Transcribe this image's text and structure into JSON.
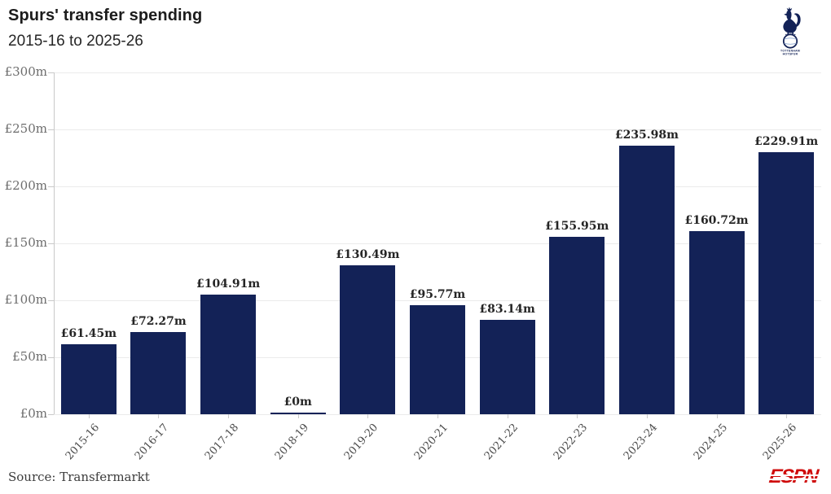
{
  "header": {
    "title": "Spurs' transfer spending",
    "subtitle": "2015-16 to 2025-26",
    "crest_text_top": "TOTTENHAM",
    "crest_text_bottom": "HOTSPUR"
  },
  "chart_data": {
    "type": "bar",
    "title": "Spurs' transfer spending",
    "subtitle": "2015-16 to 2025-26",
    "categories": [
      "2015-16",
      "2016-17",
      "2017-18",
      "2018-19",
      "2019-20",
      "2020-21",
      "2021-22",
      "2022-23",
      "2023-24",
      "2024-25",
      "2025-26"
    ],
    "values": [
      61.45,
      72.27,
      104.91,
      0,
      130.49,
      95.77,
      83.14,
      155.95,
      235.98,
      160.72,
      229.91
    ],
    "value_labels": [
      "£61.45m",
      "£72.27m",
      "£104.91m",
      "£0m",
      "£130.49m",
      "£95.77m",
      "£83.14m",
      "£155.95m",
      "£235.98m",
      "£160.72m",
      "£229.91m"
    ],
    "xlabel": "",
    "ylabel": "",
    "ylim": [
      0,
      300
    ],
    "ytick_values": [
      0,
      50,
      100,
      150,
      200,
      250,
      300
    ],
    "ytick_labels": [
      "£0m",
      "£50m",
      "£100m",
      "£150m",
      "£200m",
      "£250m",
      "£300m"
    ],
    "grid": "horizontal",
    "legend": "none",
    "bar_color": "#132257"
  },
  "footer": {
    "source": "Source: Transfermarkt",
    "brand": "ESPN"
  },
  "colors": {
    "bar": "#132257",
    "crest_navy": "#132257",
    "espn_red": "#cf0a0a",
    "grid": "#ebebeb",
    "axis": "#c9c9c9"
  }
}
